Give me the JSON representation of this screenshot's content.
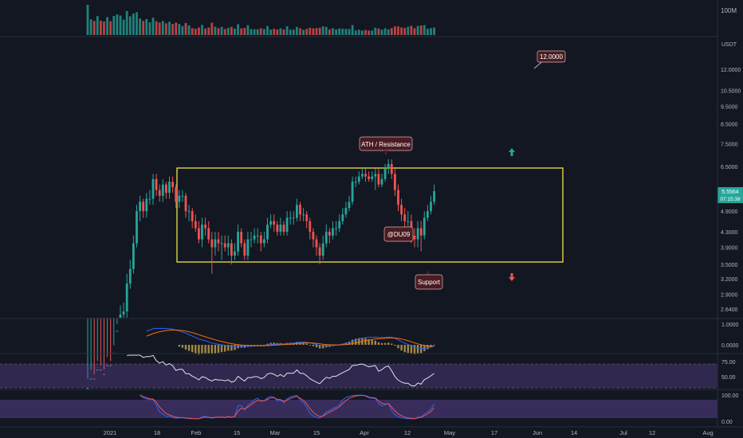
{
  "price_scale": {
    "volume_label": "100M",
    "unit_label": "USDT",
    "ticks": [
      "12.0000",
      "10.5000",
      "9.5000",
      "8.5000",
      "7.5000",
      "6.5000",
      "4.9000",
      "4.3000",
      "3.9000",
      "3.5000",
      "3.2000",
      "2.9000",
      "2.6400"
    ],
    "macd_ticks": [
      "1.0000",
      "0.0000"
    ],
    "rsi_ticks": [
      "75.00",
      "50.00"
    ],
    "stoch_ticks": [
      "100.00",
      "0.00"
    ]
  },
  "current_price": {
    "value": "5.5564",
    "countdown": "07:15:38",
    "color": "#26a69a"
  },
  "x_axis": {
    "labels": [
      "2021",
      "18",
      "Feb",
      "15",
      "Mar",
      "15",
      "Apr",
      "12",
      "May",
      "17",
      "Jun",
      "14",
      "Jul",
      "12",
      "Aug"
    ]
  },
  "annotations": {
    "target": "12.0000",
    "ath": "ATH / Resistance",
    "author": "@DU09",
    "support": "Support"
  },
  "colors": {
    "up": "#26a69a",
    "down": "#ef5350",
    "box": "#f0e442",
    "macd": "#2962ff",
    "signal": "#ff6d00",
    "rsi_band": "#7e57c2",
    "callout": "#4a1c22"
  },
  "chart_data": {
    "type": "candlestick",
    "dates": [
      "2021-01-12",
      "2021-01-13",
      "2021-01-14",
      "2021-01-15",
      "2021-01-16",
      "2021-01-17",
      "2021-01-18",
      "2021-01-19",
      "2021-01-20",
      "2021-01-21",
      "2021-01-22",
      "2021-01-23",
      "2021-01-24",
      "2021-01-25",
      "2021-01-26",
      "2021-01-27",
      "2021-01-28",
      "2021-01-29",
      "2021-01-30",
      "2021-01-31",
      "2021-02-01",
      "2021-02-02",
      "2021-02-03",
      "2021-02-04",
      "2021-02-05",
      "2021-02-06",
      "2021-02-07",
      "2021-02-08",
      "2021-02-09",
      "2021-02-10",
      "2021-02-11",
      "2021-02-12",
      "2021-02-13",
      "2021-02-14",
      "2021-02-15",
      "2021-02-16",
      "2021-02-17",
      "2021-02-18",
      "2021-02-19",
      "2021-02-20",
      "2021-02-21",
      "2021-02-22",
      "2021-02-23",
      "2021-02-24",
      "2021-02-25",
      "2021-02-26",
      "2021-02-27",
      "2021-02-28",
      "2021-03-01",
      "2021-03-02",
      "2021-03-03",
      "2021-03-04",
      "2021-03-05",
      "2021-03-06",
      "2021-03-07",
      "2021-03-08",
      "2021-03-09",
      "2021-03-10",
      "2021-03-11",
      "2021-03-12",
      "2021-03-13",
      "2021-03-14",
      "2021-03-15",
      "2021-03-16",
      "2021-03-17",
      "2021-03-18",
      "2021-03-19",
      "2021-03-20",
      "2021-03-21",
      "2021-03-22",
      "2021-03-23",
      "2021-03-24",
      "2021-03-25",
      "2021-03-26",
      "2021-03-27",
      "2021-03-28",
      "2021-03-29",
      "2021-03-30",
      "2021-03-31",
      "2021-04-01",
      "2021-04-02",
      "2021-04-03",
      "2021-04-04",
      "2021-04-05",
      "2021-04-06",
      "2021-04-07",
      "2021-04-08",
      "2021-04-09",
      "2021-04-10",
      "2021-04-11",
      "2021-04-12",
      "2021-04-13",
      "2021-04-14",
      "2021-04-15",
      "2021-04-16",
      "2021-04-17",
      "2021-04-18",
      "2021-04-19",
      "2021-04-20",
      "2021-04-21",
      "2021-04-22",
      "2021-04-23",
      "2021-04-24",
      "2021-04-25",
      "2021-04-26",
      "2021-04-27",
      "2021-04-28"
    ],
    "open": [
      1.2,
      1.6,
      1.7,
      1.6,
      1.8,
      1.75,
      1.7,
      1.85,
      1.8,
      2.0,
      2.3,
      2.55,
      2.6,
      3.1,
      3.4,
      4.0,
      4.9,
      5.2,
      4.9,
      5.3,
      5.3,
      6.0,
      5.6,
      5.4,
      5.8,
      5.5,
      5.9,
      5.7,
      5.2,
      5.4,
      5.4,
      4.9,
      4.9,
      4.6,
      4.4,
      4.1,
      4.5,
      4.4,
      4.1,
      3.9,
      4.1,
      4.0,
      4.0,
      3.9,
      4.0,
      3.7,
      3.8,
      4.3,
      4.0,
      3.7,
      4.1,
      4.1,
      4.2,
      4.2,
      4.0,
      4.1,
      4.5,
      4.6,
      4.5,
      4.3,
      4.5,
      4.3,
      4.7,
      4.7,
      4.7,
      5.1,
      4.8,
      4.8,
      4.6,
      4.3,
      4.1,
      3.9,
      3.7,
      4.0,
      4.3,
      4.2,
      4.4,
      4.4,
      4.6,
      4.8,
      5.0,
      5.2,
      5.9,
      5.9,
      6.1,
      6.2,
      6.1,
      6.0,
      6.1,
      6.2,
      5.8,
      6.0,
      6.4,
      6.6,
      6.2,
      5.6,
      5.1,
      4.8,
      4.6,
      4.6,
      4.2,
      4.1,
      4.4,
      4.2,
      4.7,
      4.9,
      5.2
    ],
    "close": [
      1.6,
      1.7,
      1.6,
      1.8,
      1.75,
      1.7,
      1.85,
      1.8,
      2.0,
      2.3,
      2.55,
      2.6,
      3.1,
      3.4,
      4.0,
      4.9,
      5.2,
      4.9,
      5.3,
      5.3,
      6.0,
      5.6,
      5.4,
      5.8,
      5.5,
      5.9,
      5.7,
      5.2,
      5.4,
      5.4,
      4.9,
      4.9,
      4.6,
      4.4,
      4.1,
      4.5,
      4.4,
      4.1,
      3.9,
      4.1,
      4.0,
      4.0,
      3.9,
      4.0,
      3.7,
      3.8,
      4.3,
      4.0,
      3.7,
      4.1,
      4.1,
      4.2,
      4.2,
      4.0,
      4.1,
      4.5,
      4.6,
      4.5,
      4.3,
      4.5,
      4.3,
      4.7,
      4.7,
      4.7,
      5.1,
      4.8,
      4.8,
      4.6,
      4.3,
      4.1,
      3.9,
      3.7,
      4.0,
      4.3,
      4.2,
      4.4,
      4.4,
      4.6,
      4.8,
      5.0,
      5.2,
      5.9,
      5.9,
      6.1,
      6.2,
      6.1,
      6.0,
      6.1,
      6.2,
      5.8,
      6.0,
      6.4,
      6.6,
      6.2,
      5.6,
      5.1,
      4.8,
      4.6,
      4.6,
      4.2,
      4.1,
      4.4,
      4.2,
      4.7,
      4.9,
      5.2,
      5.56
    ],
    "high": [
      1.7,
      1.8,
      1.75,
      1.9,
      1.85,
      1.8,
      1.95,
      1.9,
      2.1,
      2.4,
      2.7,
      2.75,
      3.3,
      3.6,
      4.2,
      5.1,
      5.4,
      5.3,
      5.5,
      5.6,
      6.2,
      6.2,
      5.8,
      6.0,
      5.9,
      6.1,
      6.1,
      5.8,
      5.6,
      5.6,
      5.5,
      5.1,
      5.0,
      4.8,
      4.6,
      4.7,
      4.7,
      4.6,
      4.3,
      4.3,
      4.3,
      4.2,
      4.2,
      4.2,
      4.1,
      4.0,
      4.5,
      4.4,
      4.1,
      4.3,
      4.3,
      4.4,
      4.4,
      4.3,
      4.3,
      4.7,
      4.8,
      4.8,
      4.6,
      4.7,
      4.6,
      4.9,
      4.9,
      4.9,
      5.3,
      5.2,
      5.0,
      4.9,
      4.7,
      4.4,
      4.2,
      4.0,
      4.2,
      4.5,
      4.4,
      4.6,
      4.6,
      4.8,
      5.0,
      5.2,
      5.4,
      6.1,
      6.1,
      6.3,
      6.4,
      6.4,
      6.3,
      6.3,
      6.4,
      6.4,
      6.2,
      6.6,
      6.8,
      6.8,
      6.4,
      5.8,
      5.3,
      5.0,
      4.9,
      4.8,
      4.4,
      4.6,
      4.6,
      4.9,
      5.1,
      5.4,
      5.8
    ],
    "low": [
      1.1,
      1.5,
      1.5,
      1.5,
      1.6,
      1.6,
      1.6,
      1.7,
      1.7,
      1.9,
      2.2,
      2.45,
      2.5,
      3.0,
      3.3,
      3.9,
      4.6,
      4.7,
      4.7,
      5.1,
      5.1,
      5.4,
      5.2,
      5.2,
      5.3,
      5.3,
      5.5,
      5.0,
      5.0,
      5.2,
      4.7,
      4.6,
      4.4,
      4.3,
      4.0,
      3.9,
      4.2,
      4.0,
      3.3,
      3.7,
      3.8,
      3.6,
      3.8,
      3.7,
      3.5,
      3.6,
      3.7,
      3.9,
      3.6,
      3.6,
      3.9,
      4.0,
      4.0,
      3.8,
      3.9,
      4.0,
      4.4,
      4.3,
      4.2,
      4.2,
      4.2,
      4.2,
      4.5,
      4.5,
      4.6,
      4.6,
      4.6,
      4.4,
      4.1,
      3.9,
      3.7,
      3.5,
      3.6,
      3.9,
      4.0,
      4.1,
      4.2,
      4.3,
      4.5,
      4.7,
      4.9,
      5.1,
      5.7,
      5.8,
      6.0,
      5.9,
      5.9,
      5.9,
      5.6,
      5.7,
      5.7,
      5.9,
      6.2,
      6.0,
      5.4,
      4.9,
      4.6,
      4.4,
      4.2,
      4.0,
      3.9,
      3.9,
      3.8,
      4.1,
      4.6,
      4.8,
      5.1
    ],
    "resistance": 6.5,
    "support": 3.6,
    "target": 12.0
  }
}
